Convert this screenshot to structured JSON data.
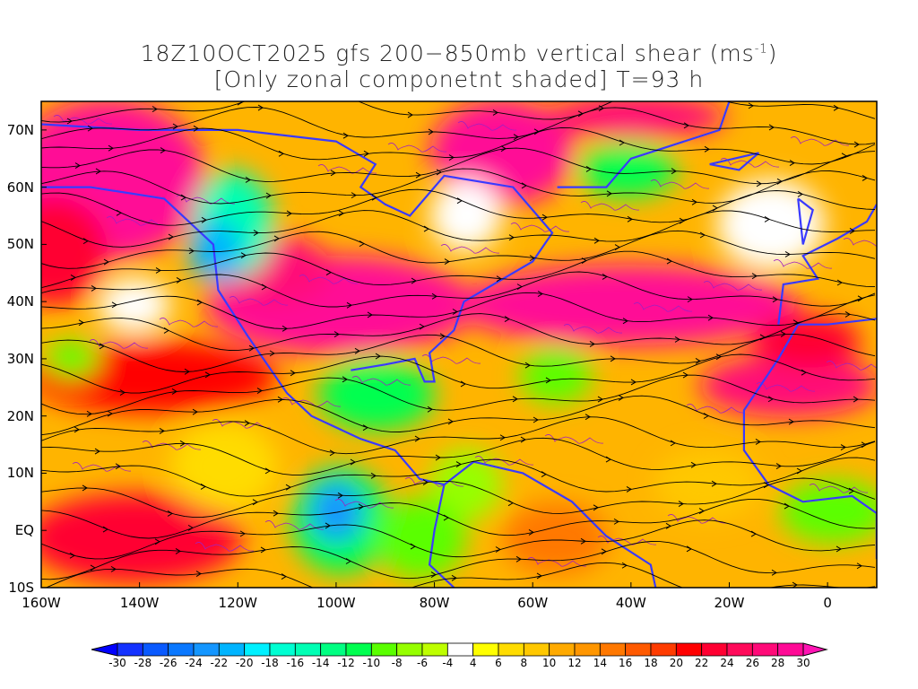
{
  "title": {
    "line1": "18Z10OCT2025 gfs 200−850mb vertical shear (ms",
    "line1_sup": "-1",
    "line1_end": ")",
    "line2": "[Only zonal componetnt shaded] T=93 h"
  },
  "map": {
    "lat_labels": [
      "70N",
      "60N",
      "50N",
      "40N",
      "30N",
      "20N",
      "10N",
      "EQ",
      "10S"
    ],
    "lat_values": [
      70,
      60,
      50,
      40,
      30,
      20,
      10,
      0,
      -10
    ],
    "lon_labels": [
      "160W",
      "140W",
      "120W",
      "100W",
      "80W",
      "60W",
      "40W",
      "20W",
      "0"
    ],
    "lon_values": [
      -160,
      -140,
      -120,
      -100,
      -80,
      -60,
      -40,
      -20,
      0
    ],
    "lon_range": [
      -160,
      10
    ],
    "lat_range": [
      -10,
      75
    ],
    "coastline_color": "#3a3aff",
    "contour_color": "#a020c0"
  },
  "colorbar": {
    "labels": [
      "-30",
      "-28",
      "-26",
      "-24",
      "-22",
      "-20",
      "-18",
      "-16",
      "-14",
      "-12",
      "-10",
      "-8",
      "-6",
      "-4",
      "4",
      "6",
      "8",
      "10",
      "12",
      "14",
      "16",
      "18",
      "20",
      "22",
      "24",
      "26",
      "28",
      "30"
    ],
    "colors": [
      "#1432ff",
      "#0a5aff",
      "#0a78ff",
      "#1496ff",
      "#00b4ff",
      "#00f0ff",
      "#00ffd2",
      "#00ffb4",
      "#00ff82",
      "#00ff50",
      "#5aff00",
      "#96ff00",
      "#beff00",
      "#ffffff",
      "#ffff00",
      "#ffdc00",
      "#ffc800",
      "#ffaa00",
      "#ff9600",
      "#ff7800",
      "#ff5a00",
      "#ff3c00",
      "#ff0000",
      "#ff0032",
      "#ff0a5a",
      "#ff0a78",
      "#ff0a96"
    ],
    "low_color": "#0000ff",
    "high_color": "#ff14b4"
  }
}
